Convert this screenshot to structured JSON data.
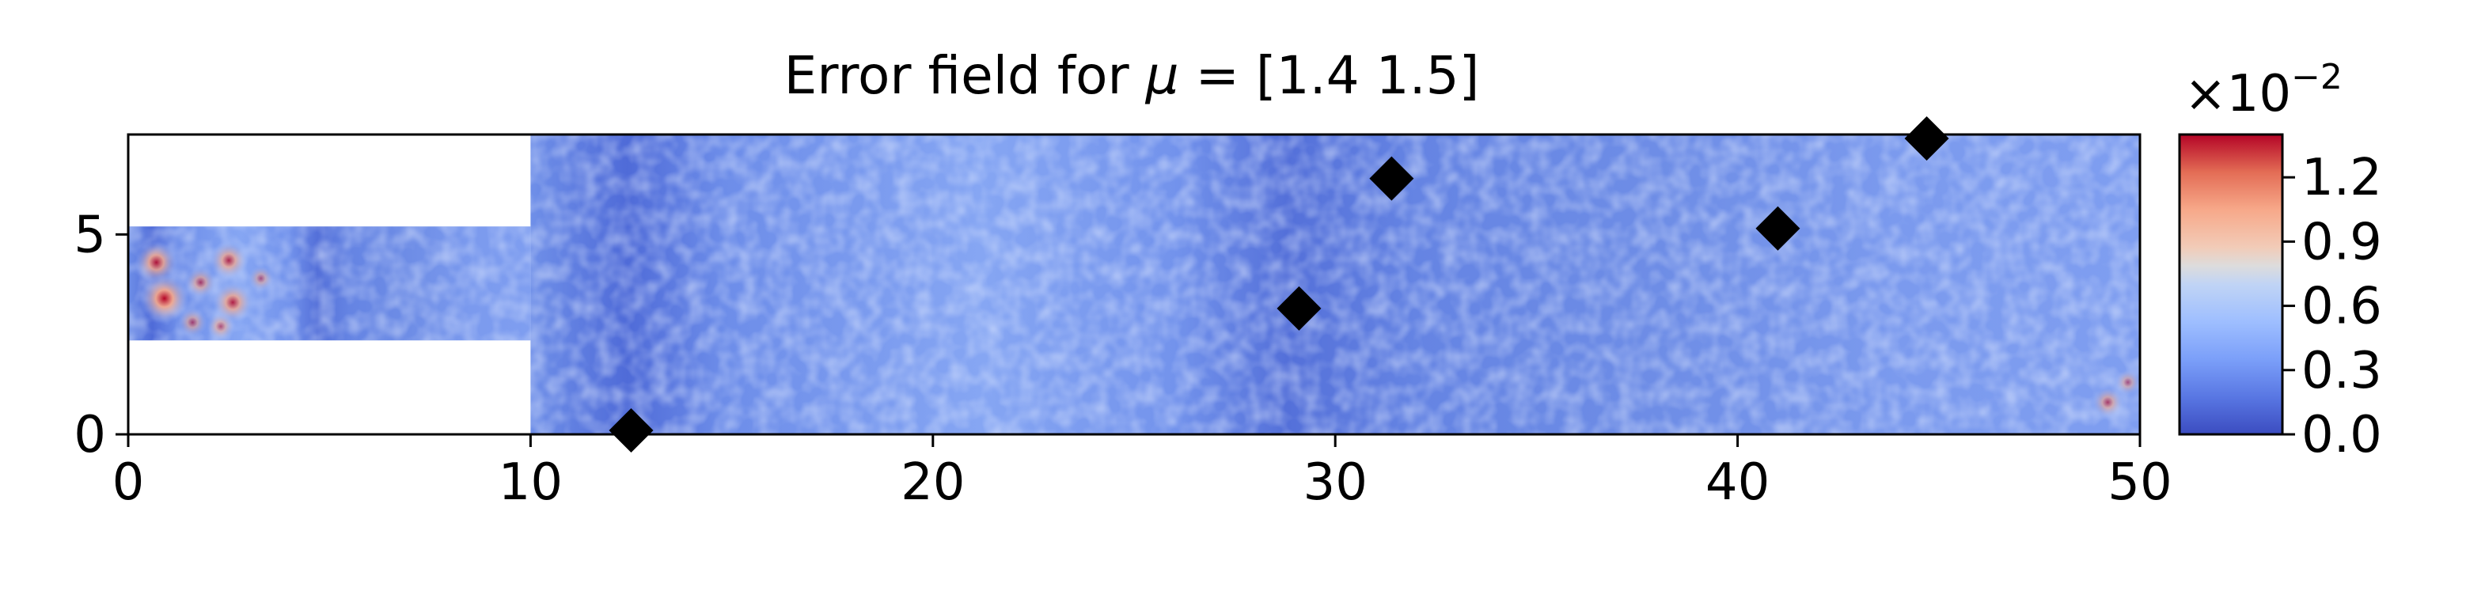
{
  "chart_data": {
    "type": "heatmap",
    "title_prefix": "Error field for ",
    "title_symbol": "μ",
    "title_suffix": " = [1.4 1.5]",
    "xlim": [
      0,
      50
    ],
    "ylim": [
      0,
      7.5
    ],
    "x_ticks": [
      0,
      10,
      20,
      30,
      40,
      50
    ],
    "y_ticks": [
      0,
      5
    ],
    "domain": {
      "channel_x": [
        0,
        10
      ],
      "channel_y": [
        2.35,
        5.2
      ],
      "main_x": [
        10,
        50
      ],
      "main_y": [
        0,
        7.5
      ]
    },
    "markers": [
      {
        "x": 12.5,
        "y": 0.1
      },
      {
        "x": 29.1,
        "y": 3.15
      },
      {
        "x": 31.4,
        "y": 6.4
      },
      {
        "x": 41.0,
        "y": 5.15
      },
      {
        "x": 44.7,
        "y": 7.4
      }
    ],
    "hotspots": [
      {
        "x": 0.7,
        "y": 4.3,
        "v": 1.2
      },
      {
        "x": 0.9,
        "y": 3.4,
        "v": 1.5
      },
      {
        "x": 2.5,
        "y": 4.35,
        "v": 1.0
      },
      {
        "x": 2.6,
        "y": 3.3,
        "v": 1.1
      },
      {
        "x": 1.8,
        "y": 3.8,
        "v": 0.7
      },
      {
        "x": 1.6,
        "y": 2.8,
        "v": 0.6
      },
      {
        "x": 2.3,
        "y": 2.7,
        "v": 0.55
      },
      {
        "x": 3.3,
        "y": 3.9,
        "v": 0.45
      },
      {
        "x": 49.2,
        "y": 0.8,
        "v": 0.7
      },
      {
        "x": 49.7,
        "y": 1.3,
        "v": 0.45
      }
    ],
    "colorbar": {
      "colormap": "coolwarm",
      "range": [
        0.0,
        1.4
      ],
      "ticks": [
        "0.0",
        "0.3",
        "0.6",
        "0.9",
        "1.2"
      ],
      "tick_values": [
        0.0,
        0.3,
        0.6,
        0.9,
        1.2
      ],
      "multiplier_base": "×10",
      "multiplier_exp": "−2"
    },
    "colors": {
      "low": "#3b4cc0",
      "mid": "#dddddd",
      "high": "#b40426",
      "field_base": "#5f7ee0",
      "marker": "#000000"
    }
  }
}
